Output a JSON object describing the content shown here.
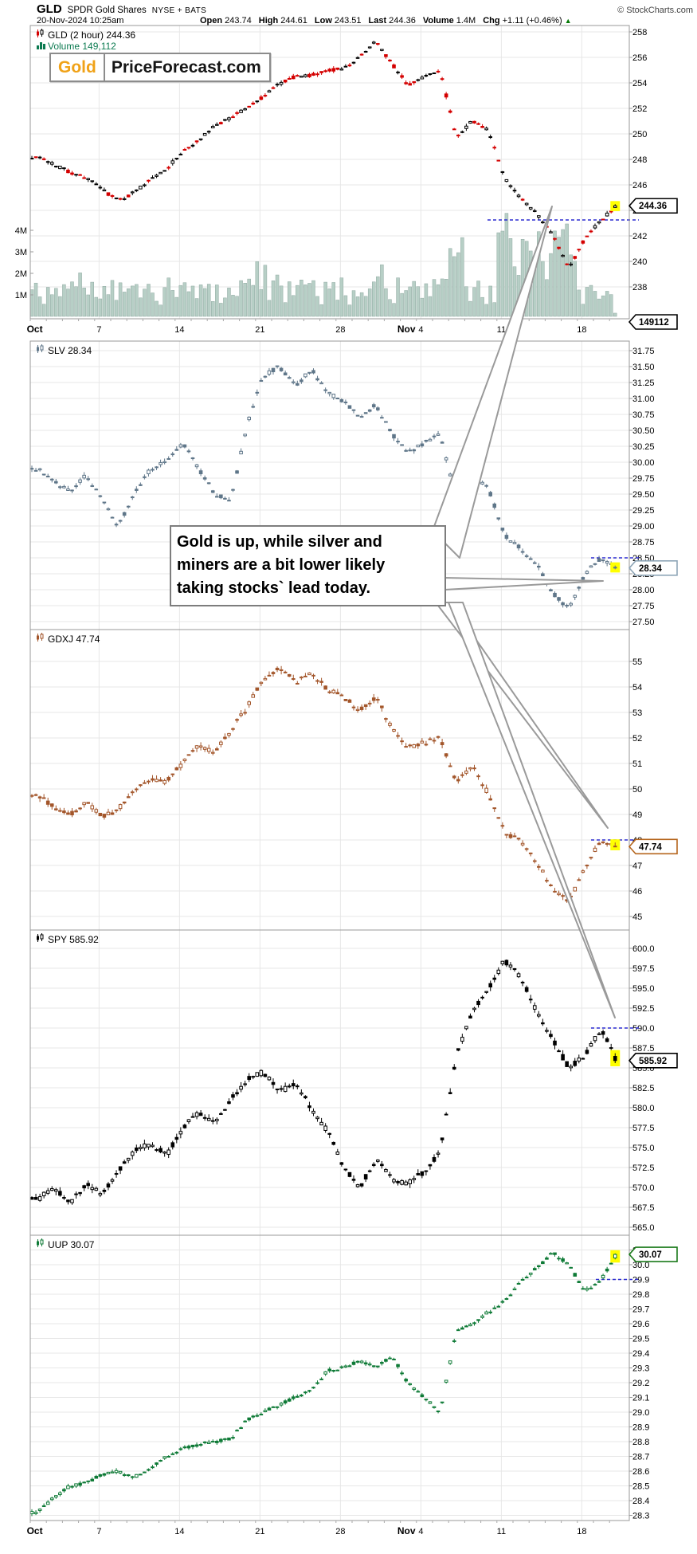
{
  "header": {
    "symbol": "GLD",
    "name": "SPDR Gold Shares",
    "exchange": "NYSE + BATS",
    "copyright": "© StockCharts.com",
    "datetime": "20-Nov-2024 10:25am",
    "quote": {
      "open_label": "Open",
      "open": "243.74",
      "high_label": "High",
      "high": "244.61",
      "low_label": "Low",
      "low": "243.51",
      "last_label": "Last",
      "last": "244.36",
      "volume_label": "Volume",
      "volume": "1.4M",
      "chg_label": "Chg",
      "chg": "+1.11 (+0.46%)",
      "chg_dir": "▲"
    }
  },
  "watermark": {
    "gold": "Gold",
    "rest": "PriceForecast.com"
  },
  "annotation": {
    "lines": [
      "Gold is up, while silver and",
      "miners are a bit lower likely",
      "taking stocks` lead today."
    ]
  },
  "x_axis": {
    "labels": [
      {
        "text": "Oct",
        "day": 0,
        "bold": true
      },
      {
        "text": "7",
        "day": 4,
        "bold": false
      },
      {
        "text": "14",
        "day": 9,
        "bold": false
      },
      {
        "text": "21",
        "day": 14,
        "bold": false
      },
      {
        "text": "28",
        "day": 19,
        "bold": false
      },
      {
        "text": "Nov",
        "day": 23.1,
        "bold": true
      },
      {
        "text": "4",
        "day": 24,
        "bold": false
      },
      {
        "text": "11",
        "day": 29,
        "bold": false
      },
      {
        "text": "18",
        "day": 34,
        "bold": false
      }
    ],
    "num_days": 37,
    "bars_per_day": 4
  },
  "chart_data": [
    {
      "id": "gld",
      "type": "candlestick",
      "symbol": "GLD",
      "timeframe": "2 hour",
      "legend": "GLD (2 hour) 244.36",
      "legend_volume": "Volume 149,112",
      "last_value": 244.36,
      "last_label": "244.36",
      "prev_close": 243.25,
      "color_up": "#000000",
      "color_down": "#d40000",
      "tag_color": "#000000",
      "ylim": [
        238,
        258
      ],
      "tick_labels": [
        "258",
        "256",
        "254",
        "252",
        "250",
        "248",
        "246",
        "244",
        "242",
        "240",
        "238"
      ],
      "tick_vals": [
        258,
        256,
        254,
        252,
        250,
        248,
        246,
        244,
        242,
        240,
        238
      ],
      "wiggle": 0.35,
      "dash_from": 612,
      "anchors_daily_close": [
        248.2,
        247.6,
        247.0,
        246.6,
        245.6,
        244.8,
        245.4,
        246.4,
        247.3,
        248.6,
        249.5,
        250.6,
        251.3,
        252.0,
        252.9,
        253.9,
        254.5,
        254.6,
        255.0,
        255.1,
        256.0,
        257.3,
        255.5,
        253.8,
        254.5,
        254.9,
        249.8,
        251.0,
        250.3,
        246.6,
        244.9,
        243.8,
        242.0,
        239.4,
        241.8,
        243.25,
        244.36
      ],
      "volume": {
        "tick_labels": [
          "4M",
          "3M",
          "2M",
          "1M"
        ],
        "tick_vals": [
          4,
          3,
          2,
          1
        ],
        "last_bar_label": "149112",
        "last_bar_value": 149112,
        "bar_color": "#b7cfc6"
      }
    },
    {
      "id": "slv",
      "type": "candlestick",
      "symbol": "SLV",
      "timeframe": "2 hour",
      "legend": "SLV 28.34",
      "last_value": 28.34,
      "last_label": "28.34",
      "prev_close": 28.5,
      "color_up": "#5f7689",
      "color_down": "#5f7689",
      "tag_color": "#8fa6b8",
      "ylim": [
        27.5,
        31.75
      ],
      "tick_labels": [
        "31.75",
        "31.50",
        "31.25",
        "31.00",
        "30.75",
        "30.50",
        "30.25",
        "30.00",
        "29.75",
        "29.50",
        "29.25",
        "29.00",
        "28.75",
        "28.50",
        "28.25",
        "28.00",
        "27.75",
        "27.50"
      ],
      "tick_vals": [
        31.75,
        31.5,
        31.25,
        31.0,
        30.75,
        30.5,
        30.25,
        30.0,
        29.75,
        29.5,
        29.25,
        29.0,
        28.75,
        28.5,
        28.25,
        28.0,
        27.75,
        27.5
      ],
      "wiggle": 0.09,
      "dash_from": 742,
      "anchors_daily_close": [
        29.9,
        29.7,
        29.55,
        29.8,
        29.4,
        29.0,
        29.5,
        29.9,
        30.0,
        30.3,
        29.9,
        29.5,
        29.4,
        30.6,
        31.35,
        31.5,
        31.2,
        31.45,
        31.1,
        30.95,
        30.7,
        30.9,
        30.45,
        30.15,
        30.3,
        30.45,
        29.4,
        29.75,
        29.6,
        28.85,
        28.65,
        28.4,
        27.95,
        27.7,
        28.25,
        28.5,
        28.34
      ]
    },
    {
      "id": "gdxj",
      "type": "candlestick",
      "symbol": "GDXJ",
      "timeframe": "2 hour",
      "legend": "GDXJ 47.74",
      "last_value": 47.74,
      "last_label": "47.74",
      "prev_close": 48.0,
      "color_up": "#a3562b",
      "color_down": "#a3562b",
      "tag_color": "#b5651d",
      "ylim": [
        45,
        55
      ],
      "tick_labels": [
        "55",
        "54",
        "53",
        "52",
        "51",
        "50",
        "49",
        "48",
        "47",
        "46",
        "45"
      ],
      "tick_vals": [
        55,
        54,
        53,
        52,
        51,
        50,
        49,
        48,
        47,
        46,
        45
      ],
      "wiggle": 0.28,
      "dash_from": 742,
      "anchors_daily_close": [
        49.8,
        49.3,
        49.0,
        49.5,
        48.9,
        49.2,
        49.9,
        50.4,
        50.3,
        51.0,
        51.7,
        51.4,
        52.3,
        53.2,
        54.3,
        54.8,
        54.2,
        54.5,
        53.9,
        53.6,
        53.1,
        53.6,
        52.4,
        51.6,
        51.8,
        52.0,
        50.3,
        50.9,
        49.8,
        48.3,
        48.0,
        47.1,
        46.1,
        45.6,
        46.9,
        48.0,
        47.74
      ]
    },
    {
      "id": "spy",
      "type": "candlestick",
      "symbol": "SPY",
      "timeframe": "2 hour",
      "legend": "SPY 585.92",
      "last_value": 585.92,
      "last_label": "585.92",
      "prev_close": 590.0,
      "color_up": "#000000",
      "color_down": "#000000",
      "tag_color": "#000000",
      "ylim": [
        565.0,
        600.0
      ],
      "tick_labels": [
        "600.0",
        "597.5",
        "595.0",
        "592.5",
        "590.0",
        "587.5",
        "585.0",
        "582.5",
        "580.0",
        "577.5",
        "575.0",
        "572.5",
        "570.0",
        "567.5",
        "565.0"
      ],
      "tick_vals": [
        600.0,
        597.5,
        595.0,
        592.5,
        590.0,
        587.5,
        585.0,
        582.5,
        580.0,
        577.5,
        575.0,
        572.5,
        570.0,
        567.5,
        565.0
      ],
      "wiggle": 1.0,
      "dash_from": 742,
      "anchors_daily_close": [
        568.5,
        570.0,
        568.0,
        570.5,
        569.0,
        572.0,
        574.5,
        575.5,
        574.0,
        577.5,
        579.5,
        578.0,
        581.0,
        583.5,
        584.5,
        582.0,
        583.0,
        580.0,
        577.0,
        572.5,
        570.0,
        573.5,
        571.0,
        570.5,
        572.0,
        574.5,
        586.5,
        592.0,
        595.0,
        598.5,
        596.5,
        592.0,
        588.5,
        585.0,
        586.5,
        590.0,
        585.92
      ]
    },
    {
      "id": "uup",
      "type": "candlestick",
      "symbol": "UUP",
      "timeframe": "2 hour",
      "legend": "UUP 30.07",
      "last_value": 30.07,
      "last_label": "30.07",
      "prev_close": 29.9,
      "color_up": "#0e7a36",
      "color_down": "#0e7a36",
      "tag_color": "#1a7a1a",
      "ylim": [
        28.3,
        30.1
      ],
      "tick_labels": [
        "30.1",
        "30.0",
        "29.9",
        "29.8",
        "29.7",
        "29.6",
        "29.5",
        "29.4",
        "29.3",
        "29.2",
        "29.1",
        "29.0",
        "28.9",
        "28.8",
        "28.7",
        "28.6",
        "28.5",
        "28.4",
        "28.3"
      ],
      "tick_vals": [
        30.1,
        30.0,
        29.9,
        29.8,
        29.7,
        29.6,
        29.5,
        29.4,
        29.3,
        29.2,
        29.1,
        29.0,
        28.9,
        28.8,
        28.7,
        28.6,
        28.5,
        28.4,
        28.3
      ],
      "wiggle": 0.03,
      "dash_from": 748,
      "anchors_daily_close": [
        28.32,
        28.42,
        28.5,
        28.52,
        28.58,
        28.6,
        28.56,
        28.62,
        28.7,
        28.75,
        28.78,
        28.8,
        28.82,
        28.95,
        29.0,
        29.05,
        29.1,
        29.15,
        29.28,
        29.3,
        29.35,
        29.3,
        29.38,
        29.2,
        29.1,
        29.0,
        29.55,
        29.6,
        29.68,
        29.75,
        29.88,
        29.98,
        30.08,
        30.0,
        29.82,
        29.9,
        30.07
      ]
    }
  ],
  "colors": {
    "grid": "#e7e7e7",
    "frame": "#999999",
    "dashed_prev_close": "#2b2bd0",
    "highlight": "#ffff00",
    "volume_legend": "#0b7a50",
    "callout_outline": "#9a9a9a"
  }
}
